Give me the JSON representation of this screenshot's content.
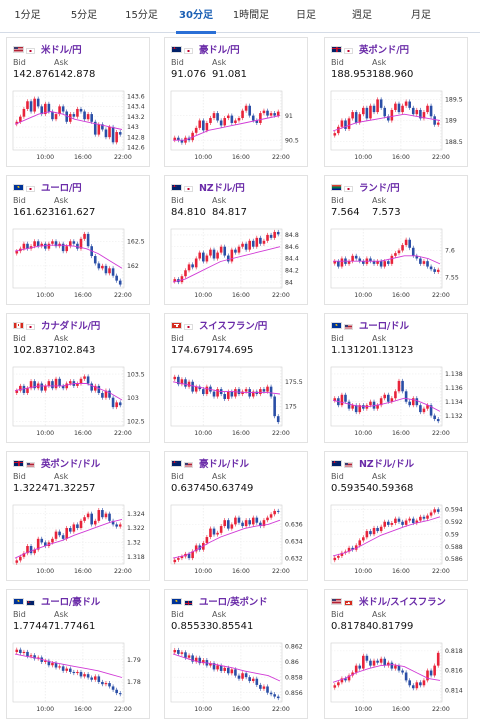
{
  "tabs": [
    "1分足",
    "5分足",
    "15分足",
    "30分足",
    "1時間足",
    "日足",
    "週足",
    "月足"
  ],
  "active_tab": 3,
  "labels": {
    "bid": "Bid",
    "ask": "Ask"
  },
  "colors": {
    "up": "#e8233a",
    "down": "#2a4ea6",
    "ma": "#d13ad6",
    "accent": "#2a6fd6",
    "pair_text": "#6a2ba8"
  },
  "x_ticks": [
    "10:00",
    "16:00",
    "22:00"
  ],
  "cards": [
    {
      "pair": "米ドル/円",
      "flags": [
        "us",
        "jp"
      ],
      "bid": "142.876",
      "ask": "142.878",
      "y_ticks": [
        "143.6",
        "143.4",
        "143.2",
        "143",
        "142.8",
        "142.6"
      ],
      "ylim": [
        142.55,
        143.7
      ],
      "closes": [
        143.1,
        143.2,
        143.35,
        143.5,
        143.3,
        143.55,
        143.4,
        143.25,
        143.45,
        143.3,
        143.15,
        143.25,
        143.4,
        143.3,
        143.1,
        143.25,
        143.2,
        143.35,
        143.3,
        143.15,
        143.25,
        143.1,
        142.85,
        143.05,
        142.95,
        142.8,
        143.0,
        142.7,
        142.9,
        142.85
      ],
      "ma": [
        143.05,
        143.15,
        143.25,
        143.3,
        143.25,
        143.15,
        143.1,
        143.05,
        143.0,
        142.95
      ]
    },
    {
      "pair": "豪ドル/円",
      "flags": [
        "au",
        "jp"
      ],
      "bid": "91.076",
      "ask": "91.081",
      "y_ticks": [
        "91",
        "90.5"
      ],
      "ylim": [
        90.3,
        91.5
      ],
      "closes": [
        90.55,
        90.5,
        90.45,
        90.55,
        90.5,
        90.65,
        90.75,
        90.9,
        90.7,
        90.85,
        90.95,
        91.05,
        90.9,
        90.8,
        90.95,
        91.0,
        90.85,
        90.9,
        90.95,
        91.1,
        91.2,
        91.0,
        90.9,
        90.85,
        91.05,
        91.1,
        91.0,
        91.05,
        91.0,
        91.08
      ],
      "ma": [
        90.5,
        90.5,
        90.6,
        90.7,
        90.75,
        90.8,
        90.85,
        90.9,
        90.95,
        91.0
      ]
    },
    {
      "pair": "英ポンド/円",
      "flags": [
        "gb",
        "jp"
      ],
      "bid": "188.953",
      "ask": "188.960",
      "y_ticks": [
        "189.5",
        "189",
        "188.5"
      ],
      "ylim": [
        188.3,
        189.7
      ],
      "closes": [
        188.7,
        188.85,
        189.0,
        188.8,
        189.05,
        189.2,
        188.95,
        189.15,
        189.3,
        189.05,
        189.35,
        189.2,
        189.5,
        189.3,
        189.1,
        189.0,
        189.25,
        189.4,
        189.2,
        189.35,
        189.45,
        189.3,
        189.15,
        189.25,
        189.05,
        189.2,
        189.35,
        189.1,
        188.9,
        188.95
      ],
      "ma": [
        188.75,
        188.85,
        188.95,
        189.0,
        189.05,
        189.1,
        189.15,
        189.1,
        189.05,
        189.0
      ]
    },
    {
      "pair": "ユーロ/円",
      "flags": [
        "eu",
        "jp"
      ],
      "bid": "161.623",
      "ask": "161.627",
      "y_ticks": [
        "162.5",
        "162"
      ],
      "ylim": [
        161.55,
        162.75
      ],
      "closes": [
        162.3,
        162.35,
        162.45,
        162.35,
        162.4,
        162.5,
        162.4,
        162.45,
        162.35,
        162.45,
        162.5,
        162.4,
        162.45,
        162.3,
        162.4,
        162.5,
        162.45,
        162.35,
        162.55,
        162.65,
        162.4,
        162.2,
        162.05,
        161.95,
        162.0,
        161.85,
        161.95,
        161.8,
        161.7,
        161.62
      ],
      "ma": [
        162.3,
        162.35,
        162.4,
        162.42,
        162.42,
        162.4,
        162.35,
        162.25,
        162.1,
        161.95
      ]
    },
    {
      "pair": "NZドル/円",
      "flags": [
        "nz",
        "jp"
      ],
      "bid": "84.810",
      "ask": "84.817",
      "y_ticks": [
        "84.8",
        "84.6",
        "84.4",
        "84.2",
        "84"
      ],
      "ylim": [
        83.9,
        84.9
      ],
      "closes": [
        84.05,
        84.0,
        84.1,
        84.2,
        84.3,
        84.25,
        84.4,
        84.5,
        84.35,
        84.45,
        84.55,
        84.4,
        84.5,
        84.6,
        84.45,
        84.35,
        84.55,
        84.5,
        84.6,
        84.65,
        84.55,
        84.7,
        84.6,
        84.75,
        84.65,
        84.7,
        84.8,
        84.75,
        84.85,
        84.81
      ],
      "ma": [
        84.0,
        84.05,
        84.15,
        84.25,
        84.35,
        84.4,
        84.45,
        84.5,
        84.55,
        84.6
      ]
    },
    {
      "pair": "ランド/円",
      "flags": [
        "za",
        "jp"
      ],
      "bid": "7.564",
      "ask": "7.573",
      "y_ticks": [
        "7.6",
        "7.55"
      ],
      "ylim": [
        7.53,
        7.64
      ],
      "closes": [
        7.58,
        7.57,
        7.585,
        7.575,
        7.58,
        7.59,
        7.585,
        7.58,
        7.575,
        7.585,
        7.58,
        7.575,
        7.58,
        7.57,
        7.58,
        7.575,
        7.59,
        7.595,
        7.6,
        7.61,
        7.62,
        7.605,
        7.59,
        7.585,
        7.575,
        7.58,
        7.57,
        7.565,
        7.56,
        7.564
      ],
      "ma": [
        7.58,
        7.58,
        7.58,
        7.58,
        7.58,
        7.585,
        7.59,
        7.59,
        7.585,
        7.575
      ]
    },
    {
      "pair": "カナダドル/円",
      "flags": [
        "ca",
        "jp"
      ],
      "bid": "102.837",
      "ask": "102.843",
      "y_ticks": [
        "103.5",
        "103",
        "102.5"
      ],
      "ylim": [
        102.4,
        103.65
      ],
      "closes": [
        103.15,
        103.25,
        103.1,
        103.2,
        103.35,
        103.2,
        103.3,
        103.15,
        103.25,
        103.35,
        103.2,
        103.4,
        103.25,
        103.2,
        103.3,
        103.35,
        103.25,
        103.3,
        103.4,
        103.45,
        103.3,
        103.15,
        103.25,
        103.1,
        103.0,
        103.15,
        103.0,
        102.8,
        102.9,
        102.84
      ],
      "ma": [
        103.15,
        103.2,
        103.25,
        103.25,
        103.25,
        103.3,
        103.3,
        103.2,
        103.1,
        102.95
      ]
    },
    {
      "pair": "スイスフラン/円",
      "flags": [
        "ch",
        "jp"
      ],
      "bid": "174.679",
      "ask": "174.695",
      "y_ticks": [
        "175.5",
        "175"
      ],
      "ylim": [
        174.6,
        175.8
      ],
      "closes": [
        175.6,
        175.45,
        175.55,
        175.4,
        175.5,
        175.3,
        175.4,
        175.35,
        175.25,
        175.4,
        175.3,
        175.2,
        175.35,
        175.25,
        175.15,
        175.3,
        175.2,
        175.35,
        175.25,
        175.3,
        175.35,
        175.2,
        175.3,
        175.25,
        175.35,
        175.3,
        175.4,
        175.2,
        174.8,
        174.68
      ],
      "ma": [
        175.5,
        175.45,
        175.4,
        175.35,
        175.3,
        175.3,
        175.28,
        175.28,
        175.28,
        175.25
      ]
    },
    {
      "pair": "ユーロ/ドル",
      "flags": [
        "eu",
        "us"
      ],
      "bid": "1.13120",
      "ask": "1.13123",
      "y_ticks": [
        "1.138",
        "1.136",
        "1.134",
        "1.132"
      ],
      "ylim": [
        1.1305,
        1.139
      ],
      "closes": [
        1.1345,
        1.1335,
        1.135,
        1.134,
        1.133,
        1.1335,
        1.1325,
        1.1335,
        1.133,
        1.1335,
        1.134,
        1.133,
        1.1335,
        1.1345,
        1.135,
        1.134,
        1.1345,
        1.1355,
        1.137,
        1.1355,
        1.134,
        1.1335,
        1.1345,
        1.1335,
        1.1325,
        1.133,
        1.1335,
        1.132,
        1.1315,
        1.1312
      ],
      "ma": [
        1.1342,
        1.1338,
        1.1334,
        1.1333,
        1.1336,
        1.134,
        1.1345,
        1.1342,
        1.1335,
        1.1326
      ]
    },
    {
      "pair": "英ポンド/ドル",
      "flags": [
        "gb",
        "us"
      ],
      "bid": "1.32247",
      "ask": "1.32257",
      "y_ticks": [
        "1.324",
        "1.322",
        "1.32",
        "1.318"
      ],
      "ylim": [
        1.317,
        1.3252
      ],
      "closes": [
        1.3175,
        1.318,
        1.3185,
        1.3195,
        1.3185,
        1.319,
        1.3205,
        1.32,
        1.3195,
        1.32,
        1.3205,
        1.3215,
        1.321,
        1.3205,
        1.322,
        1.3215,
        1.3225,
        1.322,
        1.323,
        1.3235,
        1.324,
        1.3225,
        1.323,
        1.3245,
        1.3235,
        1.324,
        1.323,
        1.3225,
        1.3222,
        1.3225
      ],
      "ma": [
        1.3178,
        1.3186,
        1.3192,
        1.3198,
        1.3203,
        1.321,
        1.3216,
        1.3222,
        1.3228,
        1.3232
      ]
    },
    {
      "pair": "豪ドル/ドル",
      "flags": [
        "au",
        "us"
      ],
      "bid": "0.63745",
      "ask": "0.63749",
      "y_ticks": [
        "0.636",
        "0.634",
        "0.632"
      ],
      "ylim": [
        0.6313,
        0.6383
      ],
      "closes": [
        0.6318,
        0.632,
        0.6322,
        0.6325,
        0.632,
        0.6328,
        0.6335,
        0.633,
        0.6338,
        0.6345,
        0.6355,
        0.6348,
        0.635,
        0.6358,
        0.6365,
        0.6355,
        0.636,
        0.6368,
        0.6362,
        0.6358,
        0.6365,
        0.636,
        0.6368,
        0.6362,
        0.6358,
        0.6365,
        0.6368,
        0.6372,
        0.6376,
        0.6375
      ],
      "ma": [
        0.632,
        0.6323,
        0.633,
        0.6338,
        0.6345,
        0.635,
        0.6355,
        0.6358,
        0.636,
        0.6365
      ]
    },
    {
      "pair": "NZドル/ドル",
      "flags": [
        "nz",
        "us"
      ],
      "bid": "0.59354",
      "ask": "0.59368",
      "y_ticks": [
        "0.594",
        "0.592",
        "0.59",
        "0.588",
        "0.586"
      ],
      "ylim": [
        0.5852,
        0.5947
      ],
      "closes": [
        0.5862,
        0.5865,
        0.587,
        0.5872,
        0.5878,
        0.5875,
        0.5882,
        0.589,
        0.5895,
        0.5905,
        0.59,
        0.591,
        0.5905,
        0.5912,
        0.592,
        0.5915,
        0.5918,
        0.5925,
        0.592,
        0.5915,
        0.5922,
        0.5925,
        0.5918,
        0.5922,
        0.5928,
        0.5925,
        0.593,
        0.5935,
        0.594,
        0.5936
      ],
      "ma": [
        0.5865,
        0.587,
        0.5878,
        0.5888,
        0.5898,
        0.5905,
        0.5912,
        0.5918,
        0.5922,
        0.5928
      ]
    },
    {
      "pair": "ユーロ/豪ドル",
      "flags": [
        "eu",
        "au"
      ],
      "bid": "1.77447",
      "ask": "1.77461",
      "y_ticks": [
        "1.79",
        "1.78"
      ],
      "ylim": [
        1.771,
        1.7975
      ],
      "closes": [
        1.7945,
        1.793,
        1.7935,
        1.7915,
        1.792,
        1.7905,
        1.791,
        1.789,
        1.7895,
        1.7875,
        1.7885,
        1.7865,
        1.787,
        1.785,
        1.786,
        1.7845,
        1.784,
        1.7845,
        1.7825,
        1.7835,
        1.782,
        1.781,
        1.7825,
        1.78,
        1.779,
        1.7795,
        1.778,
        1.7765,
        1.775,
        1.7745
      ],
      "ma": [
        1.7925,
        1.7915,
        1.7905,
        1.789,
        1.788,
        1.787,
        1.786,
        1.785,
        1.7835,
        1.782
      ]
    },
    {
      "pair": "ユーロ/英ポンド",
      "flags": [
        "eu",
        "gb"
      ],
      "bid": "0.85533",
      "ask": "0.85541",
      "y_ticks": [
        "0.862",
        "0.86",
        "0.858",
        "0.856"
      ],
      "ylim": [
        0.8548,
        0.8624
      ],
      "closes": [
        0.8615,
        0.861,
        0.8612,
        0.8605,
        0.8608,
        0.86,
        0.8605,
        0.8598,
        0.8602,
        0.8595,
        0.8598,
        0.859,
        0.8595,
        0.8588,
        0.8592,
        0.8585,
        0.859,
        0.8582,
        0.8578,
        0.8585,
        0.858,
        0.8575,
        0.8578,
        0.857,
        0.8565,
        0.8568,
        0.856,
        0.8558,
        0.8555,
        0.8553
      ],
      "ma": [
        0.861,
        0.8605,
        0.86,
        0.8598,
        0.8595,
        0.8592,
        0.8588,
        0.8585,
        0.8582,
        0.8575
      ]
    },
    {
      "pair": "米ドル/スイスフラン",
      "flags": [
        "us",
        "ch"
      ],
      "bid": "0.81784",
      "ask": "0.81799",
      "y_ticks": [
        "0.818",
        "0.816",
        "0.814"
      ],
      "ylim": [
        0.8128,
        0.8188
      ],
      "closes": [
        0.8145,
        0.8148,
        0.8152,
        0.815,
        0.8155,
        0.8158,
        0.8165,
        0.8162,
        0.8175,
        0.817,
        0.8165,
        0.817,
        0.8168,
        0.8172,
        0.8165,
        0.8168,
        0.8162,
        0.8165,
        0.816,
        0.8158,
        0.815,
        0.8145,
        0.8142,
        0.8148,
        0.8145,
        0.815,
        0.816,
        0.8155,
        0.8165,
        0.8178
      ],
      "ma": [
        0.8148,
        0.8152,
        0.8158,
        0.8162,
        0.8165,
        0.8166,
        0.8164,
        0.8158,
        0.8152,
        0.815
      ]
    }
  ]
}
